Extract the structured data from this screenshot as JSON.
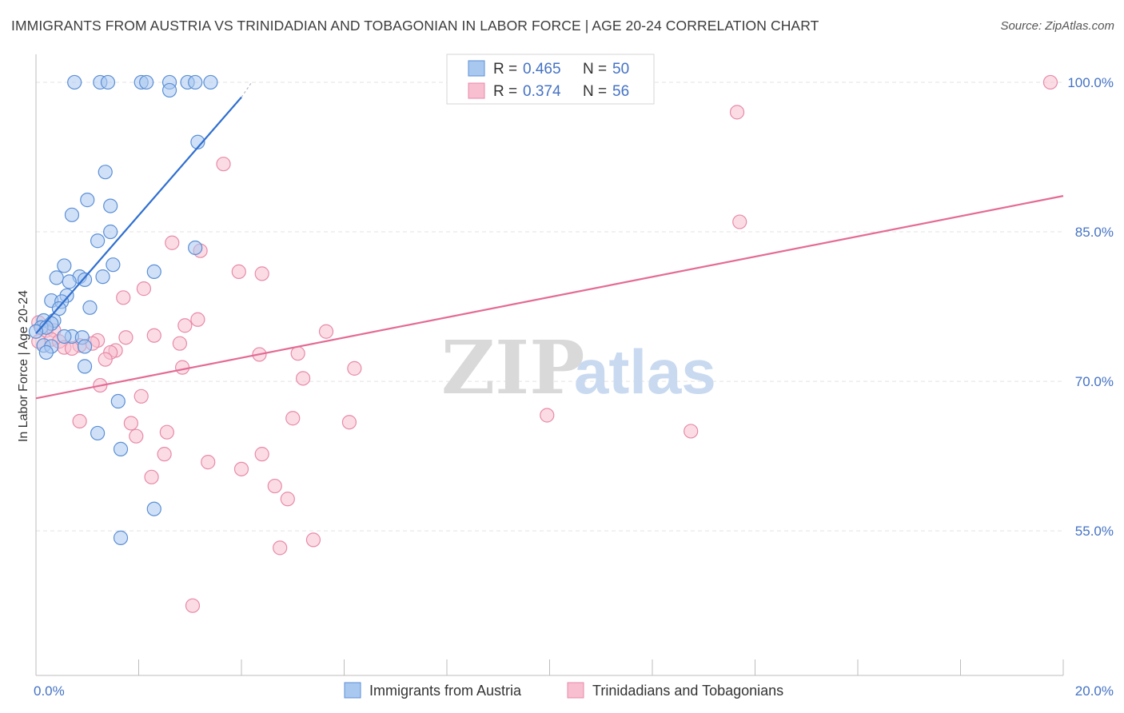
{
  "title": "IMMIGRANTS FROM AUSTRIA VS TRINIDADIAN AND TOBAGONIAN IN LABOR FORCE | AGE 20-24 CORRELATION CHART",
  "source": "Source: ZipAtlas.com",
  "watermark": {
    "zip": "ZIP",
    "atlas": "atlas"
  },
  "colors": {
    "blue_fill": "#a9c8f0",
    "blue_stroke": "#5b8fd6",
    "blue_line": "#2f6fd0",
    "pink_fill": "#f8bfd0",
    "pink_stroke": "#e88aa8",
    "pink_line": "#e46b95",
    "grid": "#e3e3e3",
    "axis_text": "#4472c4"
  },
  "legend": {
    "r_label": "R =",
    "n_label": "N =",
    "rows": [
      {
        "series": "blue",
        "r": "0.465",
        "n": "50"
      },
      {
        "series": "pink",
        "r": "0.374",
        "n": "56"
      }
    ]
  },
  "chart_data": {
    "type": "scatter",
    "title": "IMMIGRANTS FROM AUSTRIA VS TRINIDADIAN AND TOBAGONIAN IN LABOR FORCE | AGE 20-24 CORRELATION CHART",
    "xlabel": "",
    "ylabel": "In Labor Force | Age 20-24",
    "xlim": [
      0,
      20
    ],
    "ylim": [
      40.5,
      102
    ],
    "x_tick_labels": [
      "0.0%",
      "20.0%"
    ],
    "y_ticks": [
      55,
      70,
      85,
      100
    ],
    "y_tick_labels": [
      "55.0%",
      "70.0%",
      "85.0%",
      "100.0%"
    ],
    "grid": true,
    "legend_position": "top-center",
    "series": [
      {
        "name": "Immigrants from Austria",
        "color": "blue",
        "points": [
          [
            0.75,
            100
          ],
          [
            1.25,
            100
          ],
          [
            1.4,
            100
          ],
          [
            2.05,
            100
          ],
          [
            2.15,
            100
          ],
          [
            2.6,
            100
          ],
          [
            2.95,
            100
          ],
          [
            3.1,
            100
          ],
          [
            3.4,
            100
          ],
          [
            2.6,
            99.2
          ],
          [
            3.15,
            94
          ],
          [
            1.35,
            91
          ],
          [
            1.0,
            88.2
          ],
          [
            1.45,
            87.6
          ],
          [
            0.7,
            86.7
          ],
          [
            1.45,
            85.0
          ],
          [
            1.2,
            84.1
          ],
          [
            3.1,
            83.4
          ],
          [
            0.55,
            81.6
          ],
          [
            1.5,
            81.7
          ],
          [
            2.3,
            81.0
          ],
          [
            0.4,
            80.4
          ],
          [
            0.85,
            80.5
          ],
          [
            1.3,
            80.5
          ],
          [
            0.65,
            80.0
          ],
          [
            0.95,
            80.2
          ],
          [
            0.6,
            78.6
          ],
          [
            0.3,
            78.1
          ],
          [
            0.5,
            78.0
          ],
          [
            0.45,
            77.3
          ],
          [
            1.05,
            77.4
          ],
          [
            0.15,
            76.1
          ],
          [
            0.35,
            76.1
          ],
          [
            0.3,
            75.8
          ],
          [
            0.1,
            75.4
          ],
          [
            0.2,
            75.4
          ],
          [
            0.0,
            75.0
          ],
          [
            0.7,
            74.5
          ],
          [
            0.9,
            74.4
          ],
          [
            0.55,
            74.5
          ],
          [
            0.15,
            73.6
          ],
          [
            0.3,
            73.5
          ],
          [
            0.95,
            73.5
          ],
          [
            0.2,
            72.9
          ],
          [
            0.95,
            71.5
          ],
          [
            1.6,
            68.0
          ],
          [
            1.2,
            64.8
          ],
          [
            1.65,
            63.2
          ],
          [
            2.3,
            57.2
          ],
          [
            1.65,
            54.3
          ]
        ]
      },
      {
        "name": "Trinidadians and Tobagonians",
        "color": "pink",
        "points": [
          [
            11.3,
            100
          ],
          [
            19.75,
            100
          ],
          [
            13.65,
            97.0
          ],
          [
            3.65,
            91.8
          ],
          [
            13.7,
            86.0
          ],
          [
            2.65,
            83.9
          ],
          [
            3.2,
            83.1
          ],
          [
            3.95,
            81.0
          ],
          [
            4.4,
            80.8
          ],
          [
            2.1,
            79.3
          ],
          [
            1.7,
            78.4
          ],
          [
            3.15,
            76.2
          ],
          [
            2.9,
            75.6
          ],
          [
            5.65,
            75.0
          ],
          [
            0.2,
            75.1
          ],
          [
            0.05,
            75.9
          ],
          [
            0.35,
            75.1
          ],
          [
            2.3,
            74.6
          ],
          [
            1.75,
            74.4
          ],
          [
            1.2,
            74.1
          ],
          [
            0.3,
            74.2
          ],
          [
            0.45,
            74.0
          ],
          [
            0.85,
            73.6
          ],
          [
            0.55,
            73.4
          ],
          [
            0.7,
            73.3
          ],
          [
            1.55,
            73.1
          ],
          [
            1.45,
            72.9
          ],
          [
            1.1,
            73.8
          ],
          [
            2.8,
            73.8
          ],
          [
            4.35,
            72.7
          ],
          [
            5.1,
            72.8
          ],
          [
            1.35,
            72.2
          ],
          [
            2.85,
            71.4
          ],
          [
            6.2,
            71.3
          ],
          [
            5.2,
            70.3
          ],
          [
            1.25,
            69.6
          ],
          [
            2.05,
            68.5
          ],
          [
            5.0,
            66.3
          ],
          [
            0.85,
            66.0
          ],
          [
            1.85,
            65.8
          ],
          [
            6.1,
            65.9
          ],
          [
            9.95,
            66.6
          ],
          [
            12.75,
            65.0
          ],
          [
            2.55,
            64.9
          ],
          [
            1.95,
            64.5
          ],
          [
            4.4,
            62.7
          ],
          [
            2.5,
            62.7
          ],
          [
            3.35,
            61.9
          ],
          [
            4.0,
            61.2
          ],
          [
            2.25,
            60.4
          ],
          [
            4.65,
            59.5
          ],
          [
            4.9,
            58.2
          ],
          [
            5.4,
            54.1
          ],
          [
            4.75,
            53.3
          ],
          [
            3.05,
            47.5
          ],
          [
            0.05,
            74.0
          ]
        ]
      }
    ],
    "trend_lines": [
      {
        "series": "blue",
        "from": [
          0.0,
          74.8
        ],
        "to": [
          4.0,
          98.5
        ],
        "dashed_to": [
          4.2,
          100
        ]
      },
      {
        "series": "pink",
        "from": [
          0.0,
          68.3
        ],
        "to": [
          20.0,
          88.6
        ]
      }
    ]
  }
}
